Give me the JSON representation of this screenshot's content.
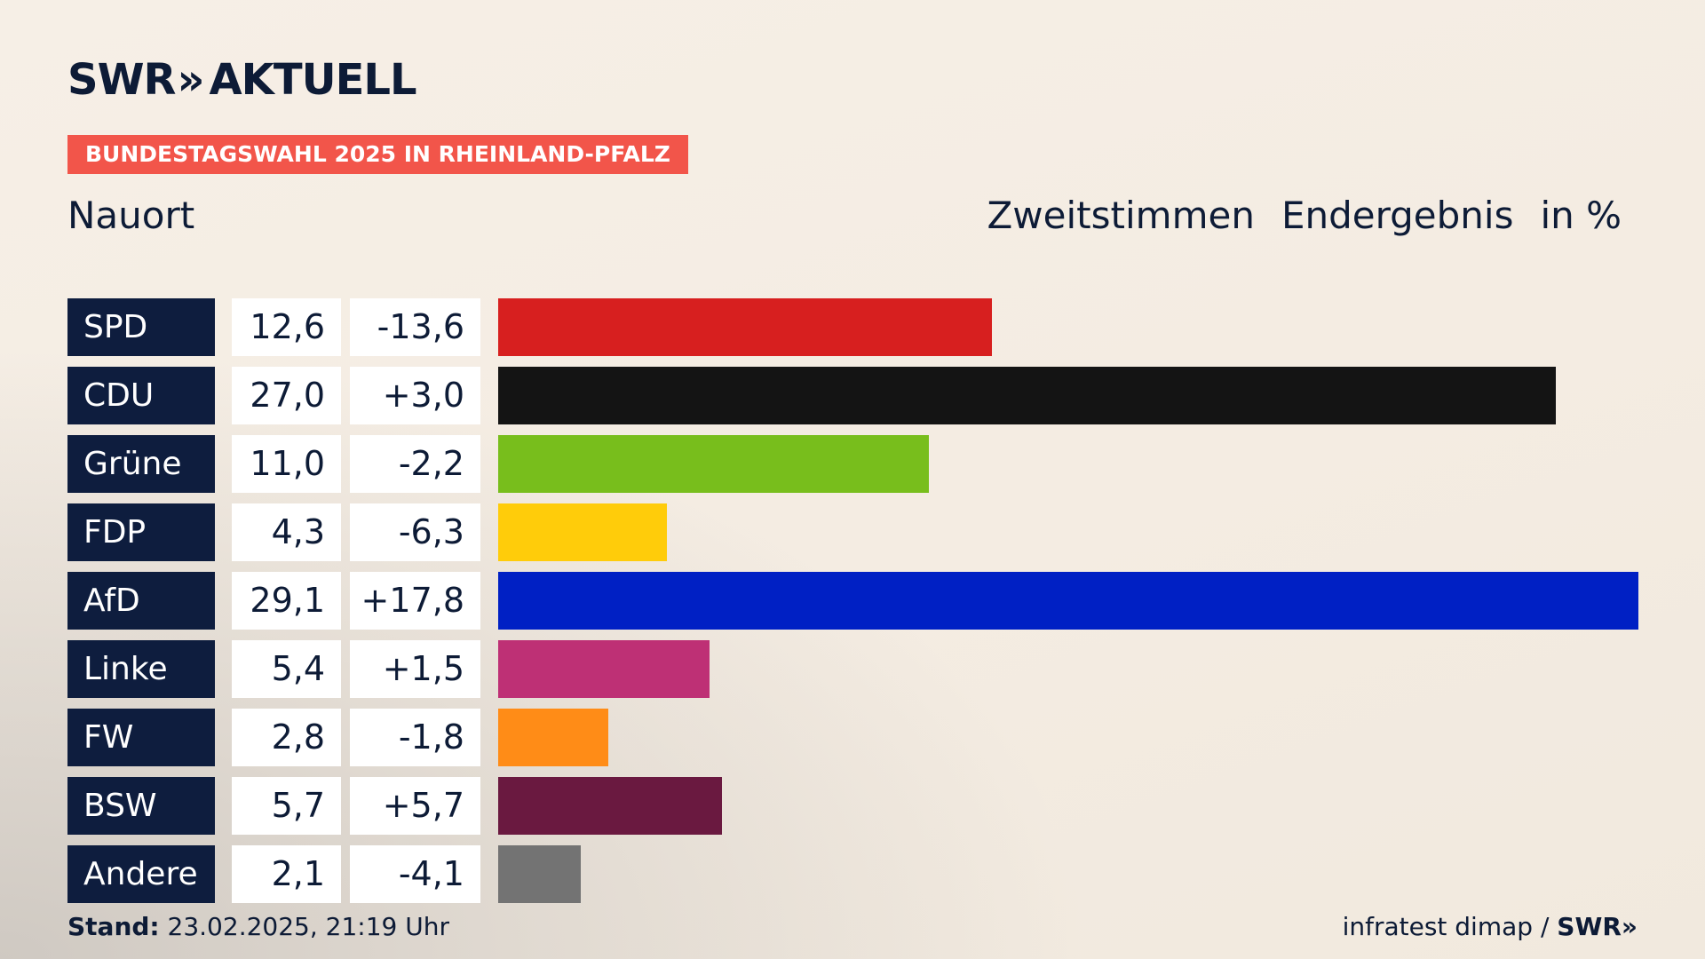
{
  "brand": {
    "logo_main": "SWR",
    "logo_arrows": "»",
    "logo_sub": "AKTUELL"
  },
  "tag": "BUNDESTAGSWAHL 2025 IN RHEINLAND-PFALZ",
  "place": "Nauort",
  "header": {
    "vote_type": "Zweitstimmen",
    "result_type": "Endergebnis",
    "unit": "in %"
  },
  "chart_data": {
    "type": "bar",
    "title": "Zweitstimmen Endergebnis in %",
    "categories": [
      "SPD",
      "CDU",
      "Grüne",
      "FDP",
      "AfD",
      "Linke",
      "FW",
      "BSW",
      "Andere"
    ],
    "values": [
      12.6,
      27.0,
      11.0,
      4.3,
      29.1,
      5.4,
      2.8,
      5.7,
      2.1
    ],
    "changes": [
      -13.6,
      3.0,
      -2.2,
      -6.3,
      17.8,
      1.5,
      -1.8,
      5.7,
      -4.1
    ],
    "value_labels": [
      "12,6",
      "27,0",
      "11,0",
      "4,3",
      "29,1",
      "5,4",
      "2,8",
      "5,7",
      "2,1"
    ],
    "change_labels": [
      "-13,6",
      "+3,0",
      "-2,2",
      "-6,3",
      "+17,8",
      "+1,5",
      "-1,8",
      "+5,7",
      "-4,1"
    ],
    "colors": [
      "#d71f1f",
      "#141414",
      "#78be1c",
      "#ffcc0a",
      "#0020c4",
      "#be3075",
      "#ff8c17",
      "#6a1940",
      "#737373"
    ],
    "orientation": "horizontal",
    "xlim": [
      0,
      29.1
    ]
  },
  "footer": {
    "stand_label": "Stand:",
    "stand_value": "23.02.2025, 21:19 Uhr",
    "source": "infratest dimap /",
    "source_logo": "SWR»"
  }
}
